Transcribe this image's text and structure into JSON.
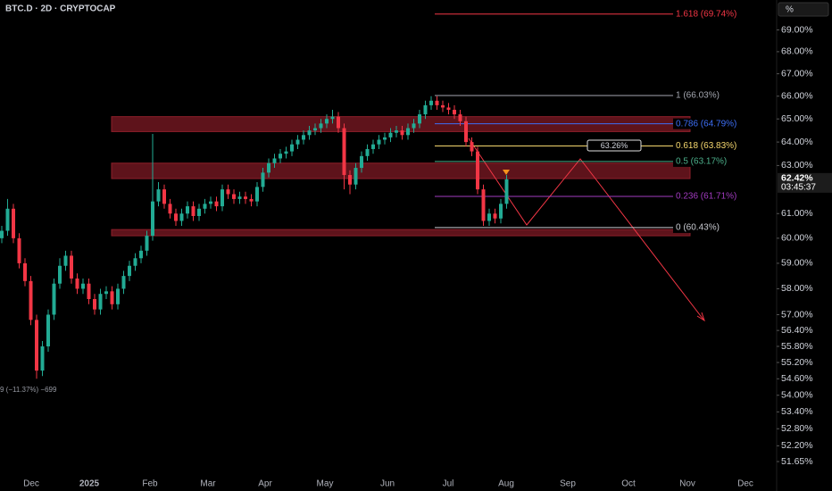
{
  "chart_data": {
    "type": "candlestick",
    "title": "BTC.D · 2D · CRYPTOCAP",
    "axis_unit": "%",
    "open": [
      60.0,
      60.3,
      61.2,
      60.0,
      59.0,
      58.3,
      56.8,
      54.9,
      55.8,
      57.0,
      58.2,
      58.9,
      59.3,
      58.4,
      58.0,
      58.2,
      57.6,
      57.2,
      57.8,
      57.9,
      57.4,
      58.0,
      58.5,
      58.9,
      59.2,
      59.5,
      60.1,
      61.5,
      62.0,
      61.4,
      61.0,
      60.7,
      61.0,
      61.3,
      60.9,
      61.2,
      61.4,
      61.5,
      61.3,
      62.0,
      61.8,
      61.6,
      61.7,
      61.6,
      61.5,
      62.1,
      62.7,
      63.1,
      63.3,
      63.5,
      63.6,
      63.9,
      64.1,
      64.3,
      64.5,
      64.6,
      64.8,
      65.0,
      65.1,
      64.6,
      62.6,
      62.2,
      62.9,
      63.4,
      63.7,
      63.9,
      64.1,
      64.2,
      64.4,
      64.5,
      64.3,
      64.6,
      64.8,
      65.2,
      65.6,
      65.8,
      65.6,
      65.5,
      65.4,
      65.2,
      64.9,
      64.0,
      63.6,
      62.0,
      60.7,
      61.0,
      60.8,
      61.4
    ],
    "high": [
      60.5,
      61.6,
      61.4,
      60.2,
      59.2,
      58.5,
      57.0,
      56.0,
      57.2,
      58.4,
      59.2,
      59.5,
      59.5,
      58.6,
      58.4,
      58.4,
      57.8,
      58.0,
      58.1,
      58.1,
      58.2,
      58.7,
      59.1,
      59.4,
      59.7,
      60.3,
      64.35,
      62.3,
      62.2,
      61.6,
      61.2,
      61.2,
      61.5,
      61.5,
      61.4,
      61.6,
      61.7,
      61.7,
      62.2,
      62.2,
      62.0,
      61.9,
      61.9,
      61.8,
      62.3,
      62.9,
      63.3,
      63.5,
      63.7,
      63.8,
      64.1,
      64.3,
      64.5,
      64.7,
      64.8,
      65.0,
      65.2,
      65.4,
      65.3,
      64.8,
      62.8,
      63.1,
      63.6,
      63.9,
      64.1,
      64.3,
      64.4,
      64.6,
      64.7,
      64.7,
      64.8,
      65.0,
      65.4,
      65.8,
      66.0,
      66.0,
      65.8,
      65.7,
      65.6,
      65.4,
      65.1,
      64.2,
      63.8,
      62.2,
      61.2,
      61.2,
      61.6,
      62.6
    ],
    "low": [
      59.8,
      60.1,
      59.8,
      58.8,
      58.1,
      56.6,
      54.6,
      54.7,
      55.6,
      56.8,
      58.0,
      58.7,
      58.2,
      57.8,
      57.8,
      57.4,
      57.0,
      57.0,
      57.6,
      57.2,
      57.2,
      57.8,
      58.3,
      58.7,
      59.0,
      59.3,
      59.9,
      61.3,
      61.2,
      60.8,
      60.5,
      60.5,
      60.8,
      60.7,
      60.7,
      61.0,
      61.2,
      61.1,
      61.1,
      61.6,
      61.4,
      61.4,
      61.4,
      61.3,
      61.3,
      61.9,
      62.5,
      62.9,
      63.1,
      63.3,
      63.4,
      63.7,
      63.9,
      64.1,
      64.3,
      64.4,
      64.6,
      64.8,
      64.4,
      62.0,
      61.8,
      62.0,
      62.7,
      63.2,
      63.5,
      63.7,
      63.9,
      64.0,
      64.2,
      64.1,
      64.1,
      64.4,
      64.6,
      65.0,
      65.4,
      65.4,
      65.3,
      65.2,
      65.0,
      64.7,
      63.8,
      63.4,
      61.8,
      60.5,
      60.5,
      60.6,
      60.6,
      61.2
    ],
    "close": [
      60.3,
      61.2,
      60.0,
      59.0,
      58.3,
      56.8,
      54.9,
      55.8,
      57.0,
      58.2,
      58.9,
      59.3,
      58.4,
      58.0,
      58.2,
      57.6,
      57.2,
      57.8,
      57.9,
      57.4,
      58.0,
      58.5,
      58.9,
      59.2,
      59.5,
      60.1,
      61.5,
      62.0,
      61.4,
      61.0,
      60.7,
      61.0,
      61.3,
      60.9,
      61.2,
      61.4,
      61.5,
      61.3,
      62.0,
      61.8,
      61.6,
      61.7,
      61.6,
      61.5,
      62.1,
      62.7,
      63.1,
      63.3,
      63.5,
      63.6,
      63.9,
      64.1,
      64.3,
      64.5,
      64.6,
      64.8,
      65.0,
      65.1,
      64.6,
      62.6,
      62.2,
      62.9,
      63.4,
      63.7,
      63.9,
      64.1,
      64.2,
      64.4,
      64.5,
      64.3,
      64.6,
      64.8,
      65.2,
      65.6,
      65.8,
      65.6,
      65.5,
      65.4,
      65.2,
      64.9,
      64.0,
      63.6,
      62.0,
      60.7,
      61.0,
      60.8,
      61.4,
      62.42
    ],
    "up_color": "#22ab94",
    "down_color": "#f23645",
    "log_scale": true,
    "ylim": [
      51.25,
      70.4
    ],
    "yticks": [
      {
        "value": 69,
        "label": "69.00%"
      },
      {
        "value": 68,
        "label": "68.00%"
      },
      {
        "value": 67,
        "label": "67.00%"
      },
      {
        "value": 66,
        "label": "66.00%"
      },
      {
        "value": 65,
        "label": "65.00%"
      },
      {
        "value": 64,
        "label": "64.00%"
      },
      {
        "value": 63,
        "label": "63.00%"
      },
      {
        "value": 61,
        "label": "61.00%"
      },
      {
        "value": 60,
        "label": "60.00%"
      },
      {
        "value": 59,
        "label": "59.00%"
      },
      {
        "value": 58,
        "label": "58.00%"
      },
      {
        "value": 57,
        "label": "57.00%"
      },
      {
        "value": 56.4,
        "label": "56.40%"
      },
      {
        "value": 55.8,
        "label": "55.80%"
      },
      {
        "value": 55.2,
        "label": "55.20%"
      },
      {
        "value": 54.6,
        "label": "54.60%"
      },
      {
        "value": 54,
        "label": "54.00%"
      },
      {
        "value": 53.4,
        "label": "53.40%"
      },
      {
        "value": 52.8,
        "label": "52.80%"
      },
      {
        "value": 52.2,
        "label": "52.20%"
      },
      {
        "value": 51.65,
        "label": "51.65%"
      }
    ],
    "x_labels": [
      "Dec",
      "2025",
      "Feb",
      "Mar",
      "Apr",
      "May",
      "Jun",
      "Jul",
      "Aug",
      "Sep",
      "Oct",
      "Nov",
      "Dec"
    ],
    "fib_levels": [
      {
        "label": "1.618 (69.74%)",
        "value": 69.74,
        "color": "#f23645"
      },
      {
        "label": "1 (66.03%)",
        "value": 66.03,
        "color": "#a3a6af"
      },
      {
        "label": "0.786 (64.79%)",
        "value": 64.79,
        "color": "#3d6ef5"
      },
      {
        "label": "0.618 (63.83%)",
        "value": 63.83,
        "color": "#f5d76e"
      },
      {
        "label": "0.5 (63.17%)",
        "value": 63.17,
        "color": "#4caf8a"
      },
      {
        "label": "0.236 (61.71%)",
        "value": 61.71,
        "color": "#a23bc0"
      },
      {
        "label": "0 (60.43%)",
        "value": 60.43,
        "color": "#c8cad0"
      }
    ],
    "zones": [
      [
        64.45,
        65.1
      ],
      [
        62.45,
        63.1
      ],
      [
        60.1,
        60.35
      ]
    ],
    "zone_color": "#6e1620",
    "projection_label": "63.26%",
    "last_price_label": "62.42%",
    "countdown": "03:45:37",
    "low_annotation": "9 (−11.37%) −699"
  }
}
